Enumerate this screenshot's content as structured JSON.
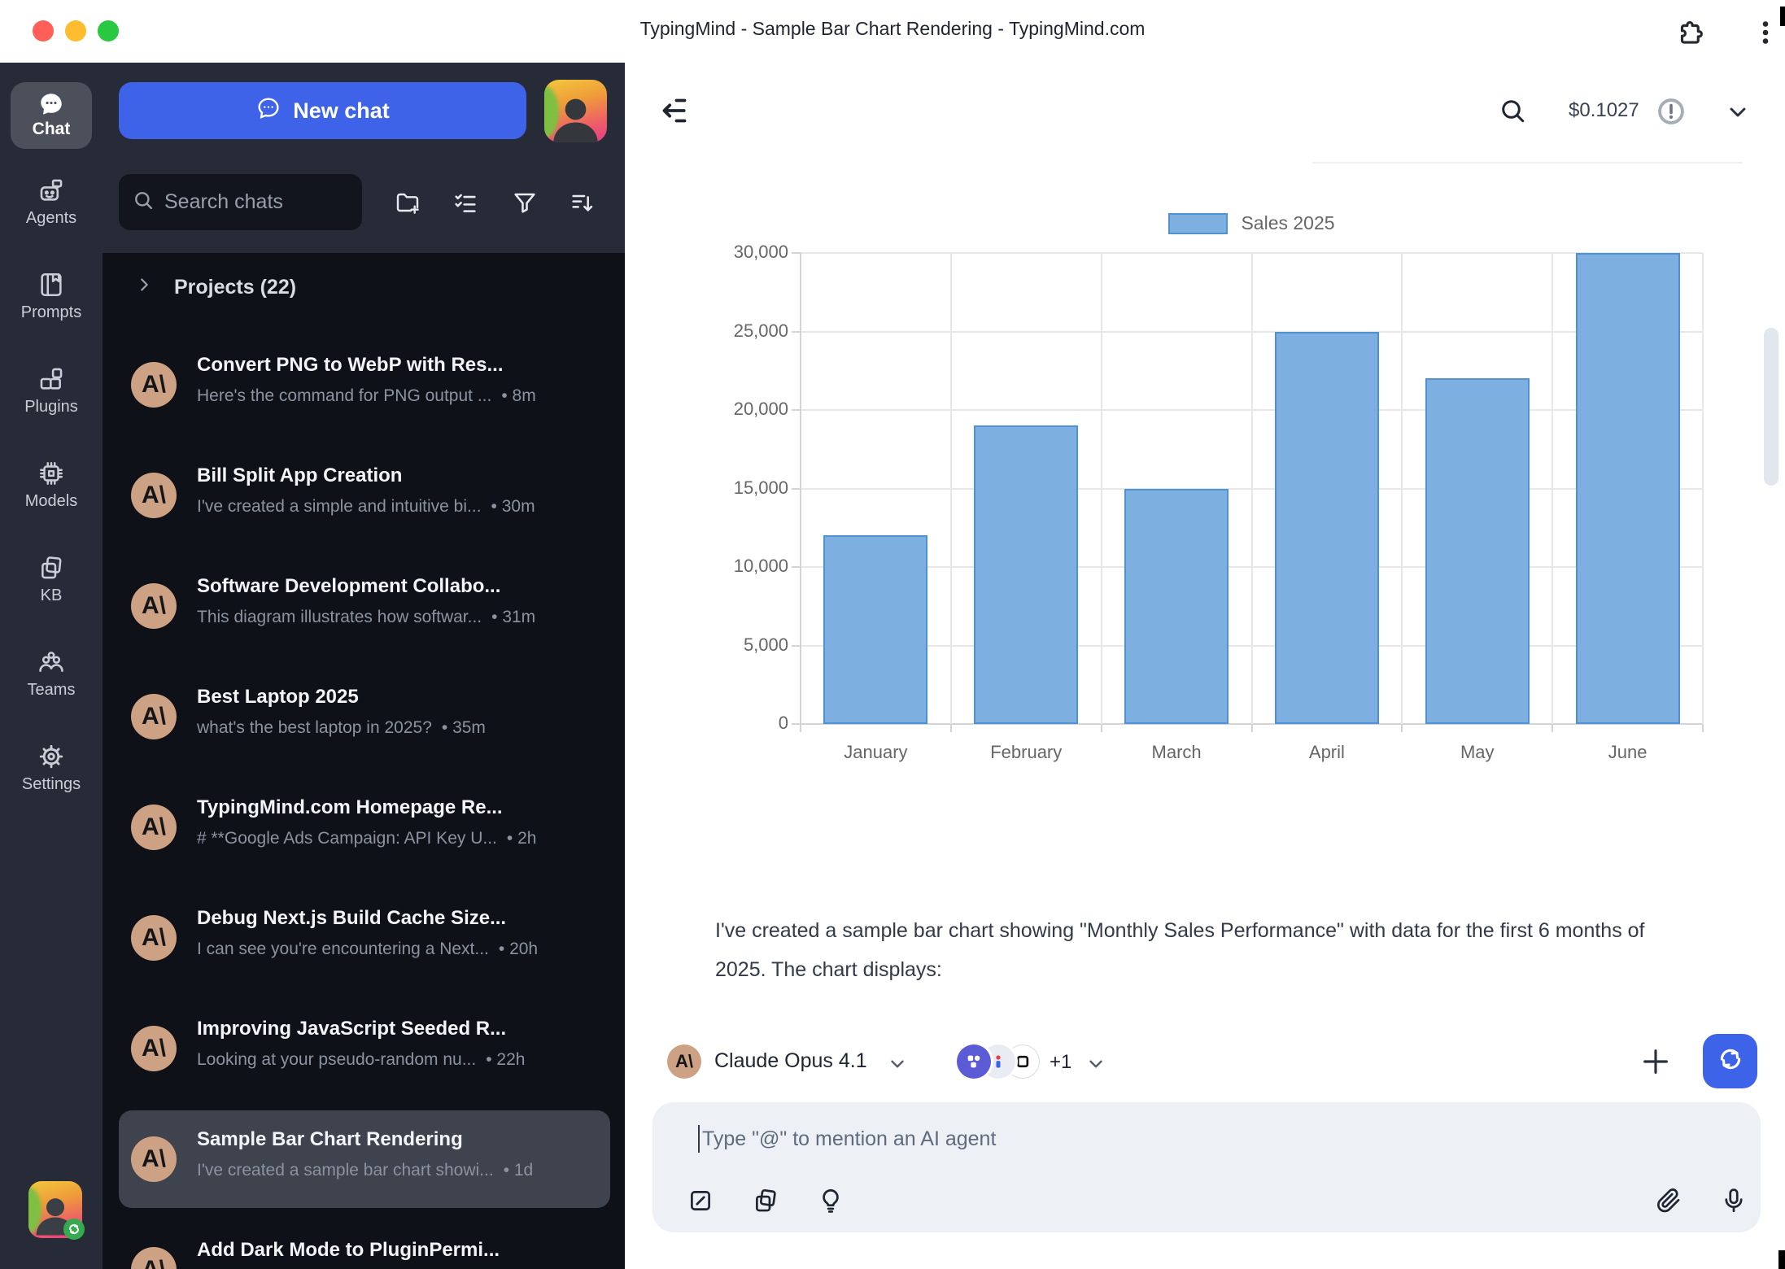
{
  "window": {
    "title": "TypingMind - Sample Bar Chart Rendering - TypingMind.com",
    "controls": [
      "close",
      "minimize",
      "maximize"
    ],
    "titlebar_icons": [
      "extensions-puzzle-icon",
      "kebab-menu-icon"
    ]
  },
  "rail": {
    "items": [
      {
        "label": "Chat",
        "icon": "chat-bubble-icon",
        "active": true
      },
      {
        "label": "Agents",
        "icon": "robot-agent-icon",
        "active": false
      },
      {
        "label": "Prompts",
        "icon": "book-bookmark-icon",
        "active": false
      },
      {
        "label": "Plugins",
        "icon": "blocks-icon",
        "active": false
      },
      {
        "label": "Models",
        "icon": "cpu-chip-icon",
        "active": false
      },
      {
        "label": "KB",
        "icon": "stacked-pages-icon",
        "active": false
      },
      {
        "label": "Teams",
        "icon": "people-group-icon",
        "active": false
      },
      {
        "label": "Settings",
        "icon": "gear-icon",
        "active": false
      }
    ],
    "user_avatar_badge_icon": "sync-icon"
  },
  "sidebar": {
    "new_chat_label": "New chat",
    "search_placeholder": "Search chats",
    "toolbar_icons": [
      "folder-plus-icon",
      "list-checks-icon",
      "filter-funnel-icon",
      "sort-descending-icon"
    ],
    "projects_label": "Projects (22)",
    "chats": [
      {
        "title": "Convert PNG to WebP with Res...",
        "preview": "Here's the command for PNG output ...",
        "time": "8m",
        "selected": false
      },
      {
        "title": "Bill Split App Creation",
        "preview": "I've created a simple and intuitive bi...",
        "time": "30m",
        "selected": false
      },
      {
        "title": "Software Development Collabo...",
        "preview": "This diagram illustrates how softwar...",
        "time": "31m",
        "selected": false
      },
      {
        "title": "Best Laptop 2025",
        "preview": "what's the best laptop in 2025?",
        "time": "35m",
        "selected": false
      },
      {
        "title": "TypingMind.com Homepage Re...",
        "preview": "# **Google Ads Campaign: API Key U...",
        "time": "2h",
        "selected": false
      },
      {
        "title": "Debug Next.js Build Cache Size...",
        "preview": "I can see you're encountering a Next...",
        "time": "20h",
        "selected": false
      },
      {
        "title": "Improving JavaScript Seeded R...",
        "preview": "Looking at your pseudo-random nu...",
        "time": "22h",
        "selected": false
      },
      {
        "title": "Sample Bar Chart Rendering",
        "preview": "I've created a sample bar chart showi...",
        "time": "1d",
        "selected": true
      },
      {
        "title": "Add Dark Mode to PluginPermi...",
        "preview": "",
        "time": "",
        "selected": false
      }
    ]
  },
  "main": {
    "topbar": {
      "icons": [
        "collapse-sidebar-icon",
        "search-icon",
        "alert-circle-icon",
        "chevron-down-icon"
      ],
      "cost": "$0.1027"
    },
    "message": "I've created a sample bar chart showing \"Monthly Sales Performance\" with data for the first 6 months of 2025. The chart displays:",
    "model_bar": {
      "model_name": "Claude Opus 4.1",
      "plugins_more": "+1",
      "action_icons": [
        "plus-icon",
        "regenerate-icon"
      ]
    },
    "input": {
      "placeholder": "Type \"@\" to mention an AI agent",
      "left_icons": [
        "prompt-pen-icon",
        "pages-copy-icon",
        "lightbulb-icon"
      ],
      "right_icons": [
        "paperclip-icon",
        "microphone-icon"
      ]
    }
  },
  "colors": {
    "accent_blue": "#3e63e8",
    "sidebar_bg": "#262b37",
    "chat_list_bg": "#0e1117",
    "selected_row_bg": "#3e434d",
    "anthropic_avatar_bg": "#cda183"
  },
  "chart_data": {
    "type": "bar",
    "categories": [
      "January",
      "February",
      "March",
      "April",
      "May",
      "June"
    ],
    "values": [
      12000,
      19000,
      15000,
      25000,
      22000,
      30000
    ],
    "series_name": "Sales 2025",
    "title": "",
    "xlabel": "",
    "ylabel": "",
    "ylim": [
      0,
      30000
    ],
    "ytick_step": 5000,
    "grid": true,
    "legend_position": "top",
    "colors": {
      "bar_fill": "#7db0e0",
      "bar_border": "#4e92d4",
      "grid": "#e7e7e7",
      "axis": "#d4d4d4",
      "tick_text": "#666666"
    }
  }
}
